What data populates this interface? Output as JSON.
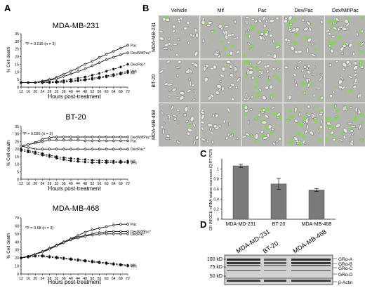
{
  "panel_labels": {
    "A": "A",
    "B": "B",
    "C": "C",
    "D": "D"
  },
  "chart_data": [
    {
      "type": "line",
      "title": "MDA-MB-231",
      "xlabel": "Hours post-treatment",
      "ylabel": "% Cell death",
      "xlim": [
        12,
        72
      ],
      "ylim": [
        0,
        35
      ],
      "x_ticks": [
        12,
        16,
        20,
        24,
        28,
        32,
        36,
        40,
        44,
        48,
        52,
        56,
        60,
        64,
        68,
        72
      ],
      "y_ticks": [
        0,
        5,
        10,
        15,
        20,
        25,
        30,
        35
      ],
      "stat": "*P = 0.015 (n = 3)",
      "x": [
        12,
        14,
        16,
        18,
        20,
        22,
        24,
        26,
        28,
        30,
        32,
        34,
        36,
        38,
        40,
        42,
        44,
        46,
        48,
        50,
        52,
        54,
        56,
        58,
        60,
        62,
        64,
        66,
        68,
        70,
        72
      ],
      "series": [
        {
          "name": "Pac",
          "style": "solid-open",
          "values": [
            3,
            3,
            3,
            3,
            3,
            3.5,
            4,
            4.5,
            5,
            5.5,
            6.5,
            7.5,
            8.5,
            9.5,
            10.5,
            11.5,
            12.5,
            14,
            15,
            16,
            17,
            18,
            19.5,
            20.5,
            21.5,
            22.5,
            23.5,
            24.5,
            25.5,
            26.5,
            27.5
          ]
        },
        {
          "name": "Dex/Mif/Pac*",
          "style": "solid-open",
          "values": [
            3,
            3,
            3,
            3,
            3,
            3.3,
            3.6,
            4,
            4.5,
            5,
            5.5,
            6.2,
            7,
            7.8,
            8.6,
            9.4,
            10.2,
            11,
            12,
            13,
            14,
            15,
            16,
            17,
            18,
            18.8,
            19.6,
            20.4,
            21.2,
            22,
            22.5
          ]
        },
        {
          "name": "Dex/Pac*",
          "style": "dashed-filled",
          "values": [
            3,
            3,
            3,
            3,
            3,
            3,
            3,
            3.2,
            3.4,
            3.6,
            3.8,
            4,
            4.3,
            4.6,
            5,
            5.4,
            5.8,
            6.2,
            6.7,
            7.2,
            7.8,
            8.4,
            9,
            9.7,
            10.4,
            11.1,
            11.8,
            12.5,
            13.2,
            14,
            15
          ]
        },
        {
          "name": "Veh",
          "style": "dashed-filled",
          "values": [
            3,
            3,
            3,
            3,
            3,
            3,
            3,
            3,
            3.1,
            3.2,
            3.3,
            3.4,
            3.6,
            3.8,
            4,
            4.2,
            4.5,
            4.8,
            5.1,
            5.4,
            5.8,
            6.2,
            6.6,
            7,
            7.4,
            7.8,
            8.3,
            8.8,
            9.3,
            9.8,
            10.5
          ]
        },
        {
          "name": "Mif",
          "style": "dashed-filled",
          "values": [
            3,
            3,
            3,
            3,
            3,
            3,
            3,
            3,
            3,
            3,
            3.1,
            3.2,
            3.3,
            3.5,
            3.7,
            3.9,
            4.1,
            4.3,
            4.6,
            4.9,
            5.2,
            5.5,
            5.9,
            6.3,
            6.7,
            7.1,
            7.5,
            8,
            8.5,
            9,
            9.5
          ]
        }
      ]
    },
    {
      "type": "line",
      "title": "BT-20",
      "xlabel": "Hours post-treatment",
      "ylabel": "% Cell death",
      "xlim": [
        12,
        72
      ],
      "ylim": [
        0,
        35
      ],
      "x_ticks": [
        12,
        16,
        20,
        24,
        28,
        32,
        36,
        40,
        44,
        48,
        52,
        56,
        60,
        64,
        68,
        72
      ],
      "y_ticks": [
        0,
        5,
        10,
        15,
        20,
        25,
        30,
        35
      ],
      "stat": "*P = 0.026 (n = 3)",
      "x": [
        12,
        14,
        16,
        18,
        20,
        22,
        24,
        26,
        28,
        30,
        32,
        34,
        36,
        38,
        40,
        42,
        44,
        46,
        48,
        50,
        52,
        54,
        56,
        58,
        60,
        62,
        64,
        66,
        68,
        70,
        72
      ],
      "series": [
        {
          "name": "Dex/Mif/Pac*",
          "style": "solid-open",
          "values": [
            22,
            22.5,
            23,
            23.5,
            24.5,
            25.5,
            26.5,
            27,
            27.5,
            28,
            28,
            28,
            28,
            28,
            28,
            28,
            28,
            28,
            28,
            28,
            28,
            28,
            28,
            28,
            28,
            28,
            28,
            28,
            28,
            28,
            28
          ]
        },
        {
          "name": "Pac",
          "style": "solid-open",
          "values": [
            22,
            22.5,
            23,
            23.5,
            24,
            24.5,
            25,
            25.5,
            26,
            26,
            26,
            26,
            26,
            26,
            26,
            26,
            26,
            26,
            25.5,
            25.5,
            25.5,
            25.5,
            25.5,
            25.5,
            25.5,
            25.5,
            25.5,
            25.5,
            25.5,
            25.5,
            25.5
          ]
        },
        {
          "name": "Dex/Pac*",
          "style": "solid-open",
          "values": [
            22,
            21.5,
            21,
            20.5,
            20,
            20,
            20,
            20,
            20,
            20,
            20,
            20,
            20,
            20,
            20,
            20,
            20,
            20,
            20,
            20,
            20,
            20,
            20,
            20,
            20,
            20,
            20,
            20,
            20,
            20,
            20
          ]
        },
        {
          "name": "Mif",
          "style": "dashed-filled",
          "values": [
            20,
            19.5,
            19,
            18.5,
            18,
            17.5,
            17,
            16.5,
            16,
            15.5,
            15,
            14.5,
            14.2,
            14,
            13.8,
            13.6,
            13.4,
            13.2,
            13,
            12.8,
            12.6,
            12.5,
            12.4,
            12.3,
            12.2,
            12.1,
            12,
            12,
            12,
            12,
            12
          ]
        },
        {
          "name": "Veh",
          "style": "dashed-filled",
          "values": [
            19,
            18.5,
            18,
            17.5,
            17,
            16.5,
            16,
            15.5,
            15,
            14.5,
            14,
            13.5,
            13,
            12.5,
            12.2,
            12,
            11.8,
            11.6,
            11.4,
            11.2,
            11,
            11,
            11,
            11,
            11,
            11,
            11,
            11,
            11,
            11,
            11
          ]
        }
      ]
    },
    {
      "type": "line",
      "title": "MDA-MB-468",
      "xlabel": "Hours post-treatment",
      "ylabel": "% Cell death",
      "xlim": [
        12,
        72
      ],
      "ylim": [
        0,
        70
      ],
      "x_ticks": [
        12,
        16,
        20,
        24,
        28,
        32,
        36,
        40,
        44,
        48,
        52,
        56,
        60,
        64,
        68,
        72
      ],
      "y_ticks": [
        0,
        10,
        20,
        30,
        40,
        50,
        60,
        70
      ],
      "stat": "*P = 0.68 (n = 3)",
      "x": [
        12,
        14,
        16,
        18,
        20,
        22,
        24,
        26,
        28,
        30,
        32,
        34,
        36,
        38,
        40,
        42,
        44,
        46,
        48,
        50,
        52,
        54,
        56,
        58,
        60,
        62,
        64,
        66,
        68,
        70,
        72
      ],
      "series": [
        {
          "name": "Pac",
          "style": "solid-open",
          "values": [
            20,
            21,
            22,
            23.5,
            25,
            26.5,
            28,
            30,
            32,
            34,
            36,
            38,
            40,
            42,
            44,
            46,
            48,
            50,
            52,
            53.5,
            55,
            56,
            57,
            58,
            59,
            60,
            61,
            61.5,
            62,
            62,
            62
          ]
        },
        {
          "name": "Dex/Mif/Pac*",
          "style": "solid-open",
          "values": [
            20,
            21,
            22,
            23.5,
            25,
            26.5,
            28,
            30,
            32,
            34,
            36,
            38,
            40,
            42,
            43.5,
            45,
            46,
            47,
            48,
            49,
            50,
            51,
            51.5,
            52,
            52.5,
            53,
            53,
            53,
            53,
            53,
            53
          ]
        },
        {
          "name": "Dex/Pac*",
          "style": "solid-open",
          "values": [
            20,
            21,
            22,
            23.5,
            25,
            26,
            27.5,
            29,
            31,
            33,
            35,
            37,
            39,
            41,
            42.5,
            44,
            45,
            46,
            47,
            48,
            48.5,
            49,
            49.5,
            50,
            50,
            50,
            50,
            50,
            50,
            50,
            50
          ]
        },
        {
          "name": "Mif",
          "style": "dashed-filled",
          "values": [
            20,
            21,
            22,
            22.5,
            23,
            23,
            23,
            22.5,
            22,
            21.5,
            21,
            20.5,
            20,
            19.5,
            19,
            18.5,
            18,
            17.5,
            17,
            16.5,
            16,
            15.5,
            15,
            14.5,
            14,
            13.5,
            13,
            12.5,
            12,
            11.5,
            11
          ]
        },
        {
          "name": "Veh",
          "style": "dashed-filled",
          "values": [
            20,
            20.5,
            21,
            21.5,
            22,
            22,
            22,
            21.5,
            21,
            20.5,
            20,
            19.5,
            19,
            18.5,
            18,
            17.5,
            17,
            16.5,
            16,
            15.5,
            15,
            14.5,
            14,
            13.5,
            13,
            12.5,
            12,
            11.5,
            11,
            10.5,
            10
          ]
        }
      ]
    },
    {
      "type": "bar",
      "ylabel": "GR (NR3C1) mRNA relative expression (Q-RT-PCR)",
      "ylim": [
        0,
        1.2
      ],
      "y_ticks": [
        0,
        0.2,
        0.4,
        0.6,
        0.8,
        1
      ],
      "categories": [
        "MDA-MD-231",
        "BT-20",
        "MDA-MB-468"
      ],
      "values": [
        1.06,
        0.7,
        0.58
      ],
      "errors": [
        0.03,
        0.11,
        0.03
      ]
    }
  ],
  "micrographs": {
    "columns": [
      "Vehicle",
      "Mif",
      "Pac",
      "Dex/Pac",
      "Dex/Mif/Pac"
    ],
    "rows": [
      "MDA-MB-231",
      "BT-20",
      "MDA-MB-468"
    ],
    "green_density": [
      [
        0.4,
        1.2,
        1.5,
        1.5,
        2.6
      ],
      [
        0,
        0.2,
        3,
        0.8,
        0.9
      ],
      [
        0.2,
        0.3,
        3.2,
        3.4,
        3.6
      ]
    ]
  },
  "western_blot": {
    "lanes": [
      "MDA-MD-231",
      "BT-20",
      "MDA-MB-468"
    ],
    "markers": [
      "100 kD",
      "75 kD",
      "50 kD"
    ],
    "bands": [
      "GRα-A",
      "GRα-B",
      "GRα-C",
      "GRα-D",
      "β-Actin"
    ]
  },
  "colors": {
    "line": "#111111",
    "bar": "#7a7a7a",
    "micro_bg": "#b4b4b0",
    "green": "#7ddc4a"
  }
}
